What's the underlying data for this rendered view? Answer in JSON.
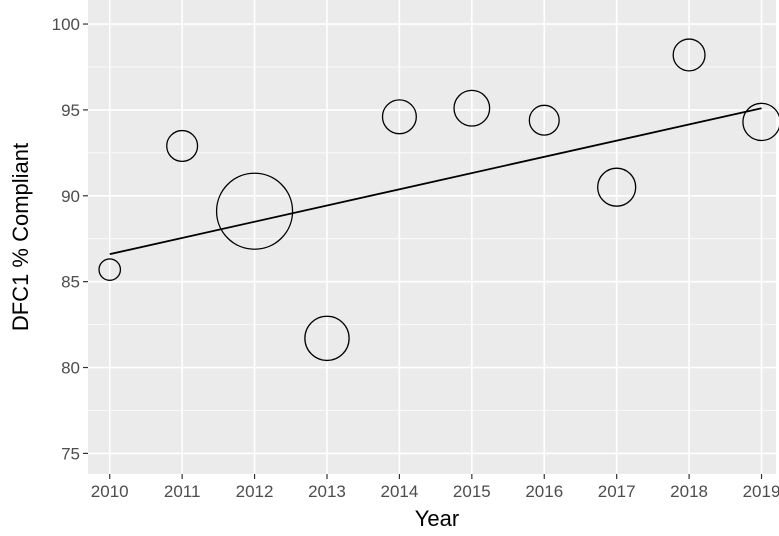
{
  "chart_data": {
    "type": "scatter",
    "title": "",
    "xlabel": "Year",
    "ylabel": "DFC1 % Compliant",
    "xlim": [
      2009.7,
      2019.2
    ],
    "ylim": [
      73.8,
      101.4
    ],
    "x_ticks": [
      2010,
      2011,
      2012,
      2013,
      2014,
      2015,
      2016,
      2017,
      2018,
      2019
    ],
    "x_tick_labels": [
      "2010",
      "2011",
      "2012",
      "2013",
      "2014",
      "2015",
      "2016",
      "2017",
      "2018",
      "2019"
    ],
    "y_ticks": [
      75,
      80,
      85,
      90,
      95,
      100
    ],
    "y_tick_labels": [
      "75",
      "80",
      "85",
      "90",
      "95",
      "100"
    ],
    "grid": true,
    "panel_background": "#ebebeb",
    "grid_color": "#ffffff",
    "marker": "open-circle",
    "marker_color": "#000000",
    "size_encoding": "relative weight (bubble size)",
    "points": [
      {
        "x": 2010,
        "y": 85.7,
        "size": 0.03
      },
      {
        "x": 2011,
        "y": 92.9,
        "size": 0.1
      },
      {
        "x": 2012,
        "y": 89.1,
        "size": 1.0
      },
      {
        "x": 2013,
        "y": 81.7,
        "size": 0.27
      },
      {
        "x": 2014,
        "y": 94.6,
        "size": 0.13
      },
      {
        "x": 2015,
        "y": 95.1,
        "size": 0.15
      },
      {
        "x": 2016,
        "y": 94.4,
        "size": 0.09
      },
      {
        "x": 2017,
        "y": 90.5,
        "size": 0.18
      },
      {
        "x": 2018,
        "y": 98.2,
        "size": 0.11
      },
      {
        "x": 2019,
        "y": 94.3,
        "size": 0.17
      }
    ],
    "trend_line": {
      "x": [
        2010,
        2019
      ],
      "y": [
        86.6,
        95.1
      ],
      "color": "#000000"
    }
  }
}
